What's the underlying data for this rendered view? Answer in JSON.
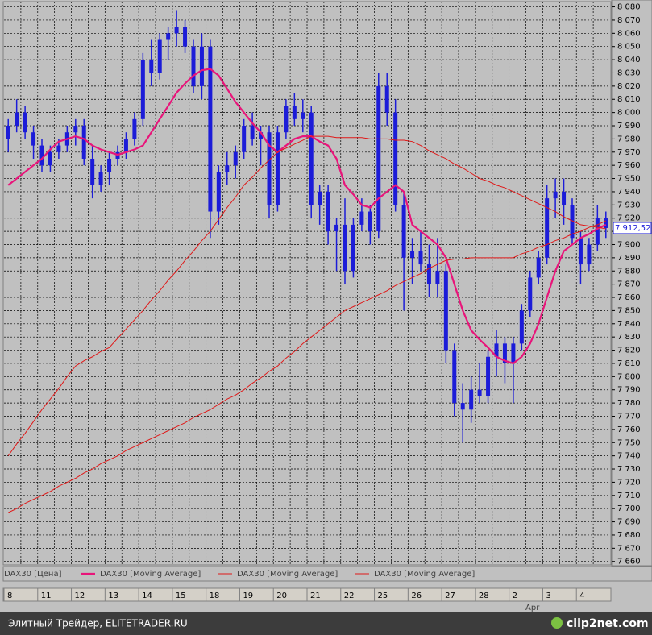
{
  "chart_data": {
    "type": "candlestick",
    "categories": [
      "8",
      null,
      null,
      null,
      "11",
      null,
      null,
      null,
      "12",
      null,
      null,
      null,
      "13",
      null,
      null,
      null,
      "14",
      null,
      null,
      null,
      "15",
      null,
      null,
      null,
      "18",
      null,
      null,
      null,
      "19",
      null,
      null,
      null,
      "20",
      null,
      null,
      null,
      "21",
      null,
      null,
      null,
      "22",
      null,
      null,
      null,
      "25",
      null,
      null,
      null,
      "26",
      null,
      null,
      null,
      "27",
      null,
      null,
      null,
      "28",
      null,
      null,
      null,
      "2",
      null,
      null,
      null,
      "3",
      null,
      null,
      null,
      "4",
      null,
      null,
      null
    ],
    "x_annotation": "Apr",
    "ylim": [
      7658,
      8084
    ],
    "yticks": [
      {
        "value": 7660,
        "label": "7 660"
      },
      {
        "value": 7670,
        "label": "7 670"
      },
      {
        "value": 7680,
        "label": "7 680"
      },
      {
        "value": 7690,
        "label": "7 690"
      },
      {
        "value": 7700,
        "label": "7 700"
      },
      {
        "value": 7710,
        "label": "7 710"
      },
      {
        "value": 7720,
        "label": "7 720"
      },
      {
        "value": 7730,
        "label": "7 730"
      },
      {
        "value": 7740,
        "label": "7 740"
      },
      {
        "value": 7750,
        "label": "7 750"
      },
      {
        "value": 7760,
        "label": "7 760"
      },
      {
        "value": 7770,
        "label": "7 770"
      },
      {
        "value": 7780,
        "label": "7 780"
      },
      {
        "value": 7790,
        "label": "7 790"
      },
      {
        "value": 7800,
        "label": "7 800"
      },
      {
        "value": 7810,
        "label": "7 810"
      },
      {
        "value": 7820,
        "label": "7 820"
      },
      {
        "value": 7830,
        "label": "7 830"
      },
      {
        "value": 7840,
        "label": "7 840"
      },
      {
        "value": 7850,
        "label": "7 850"
      },
      {
        "value": 7860,
        "label": "7 860"
      },
      {
        "value": 7870,
        "label": "7 870"
      },
      {
        "value": 7880,
        "label": "7 880"
      },
      {
        "value": 7890,
        "label": "7 890"
      },
      {
        "value": 7900,
        "label": "7 900"
      },
      {
        "value": 7910,
        "label": "7 910"
      },
      {
        "value": 7920,
        "label": "7 920"
      },
      {
        "value": 7930,
        "label": "7 930"
      },
      {
        "value": 7940,
        "label": "7 940"
      },
      {
        "value": 7950,
        "label": "7 950"
      },
      {
        "value": 7960,
        "label": "7 960"
      },
      {
        "value": 7970,
        "label": "7 970"
      },
      {
        "value": 7980,
        "label": "7 980"
      },
      {
        "value": 7990,
        "label": "7 990"
      },
      {
        "value": 8000,
        "label": "8 000"
      },
      {
        "value": 8010,
        "label": "8 010"
      },
      {
        "value": 8020,
        "label": "8 020"
      },
      {
        "value": 8030,
        "label": "8 030"
      },
      {
        "value": 8040,
        "label": "8 040"
      },
      {
        "value": 8050,
        "label": "8 050"
      },
      {
        "value": 8060,
        "label": "8 060"
      },
      {
        "value": 8070,
        "label": "8 070"
      },
      {
        "value": 8080,
        "label": "8 080"
      }
    ],
    "grid": true,
    "last_price": {
      "value": 7912.52,
      "label": "7 912,52"
    },
    "series": [
      {
        "name": "DAX30 [Цена]",
        "type": "candlestick",
        "color": "#1c1cd8",
        "open": [
          7980,
          7990,
          8000,
          7985,
          7975,
          7960,
          7970,
          7975,
          7985,
          7990,
          7965,
          7945,
          7955,
          7965,
          7970,
          7980,
          7995,
          8040,
          8030,
          8055,
          8060,
          8065,
          8050,
          8020,
          8050,
          7925,
          7955,
          7960,
          7970,
          7990,
          7980,
          7985,
          7930,
          7985,
          8005,
          7995,
          8000,
          7930,
          7940,
          7910,
          7915,
          7880,
          7915,
          7925,
          7910,
          8020,
          8000,
          7930,
          7890,
          7895,
          7885,
          7870,
          7880,
          7820,
          7780,
          7775,
          7790,
          7785,
          7815,
          7825,
          7810,
          7825,
          7850,
          7875,
          7890,
          7935,
          7940,
          7930,
          7905,
          7885,
          7900,
          7920
        ],
        "high": [
          7995,
          8010,
          8005,
          7990,
          7980,
          7975,
          7980,
          7990,
          7995,
          7995,
          7975,
          7960,
          7970,
          7975,
          7985,
          8000,
          8045,
          8055,
          8060,
          8065,
          8077,
          8070,
          8055,
          8060,
          8055,
          7960,
          7970,
          7975,
          7995,
          8000,
          7990,
          7990,
          7990,
          8010,
          8015,
          8010,
          8005,
          7945,
          7945,
          7920,
          7935,
          7920,
          7935,
          7930,
          8030,
          8030,
          8010,
          7940,
          7905,
          7910,
          7900,
          7905,
          7885,
          7825,
          7795,
          7800,
          7810,
          7820,
          7835,
          7830,
          7830,
          7855,
          7880,
          7895,
          7945,
          7950,
          7950,
          7935,
          7910,
          7905,
          7930,
          7925
        ],
        "low": [
          7970,
          7985,
          7980,
          7965,
          7955,
          7955,
          7965,
          7970,
          7975,
          7960,
          7935,
          7940,
          7945,
          7960,
          7965,
          7975,
          7990,
          8020,
          8025,
          8040,
          8050,
          8045,
          8015,
          8010,
          7905,
          7915,
          7945,
          7950,
          7965,
          7975,
          7960,
          7920,
          7925,
          7980,
          7990,
          7985,
          7920,
          7915,
          7900,
          7880,
          7870,
          7875,
          7910,
          7900,
          7905,
          7990,
          7925,
          7850,
          7870,
          7880,
          7860,
          7860,
          7810,
          7770,
          7750,
          7765,
          7780,
          7780,
          7800,
          7795,
          7780,
          7820,
          7845,
          7870,
          7885,
          7920,
          7915,
          7900,
          7870,
          7880,
          7895,
          7905
        ],
        "close": [
          7990,
          8000,
          7985,
          7975,
          7960,
          7970,
          7975,
          7985,
          7990,
          7965,
          7945,
          7955,
          7965,
          7970,
          7980,
          7995,
          8040,
          8030,
          8055,
          8060,
          8065,
          8050,
          8020,
          8050,
          7925,
          7955,
          7960,
          7970,
          7990,
          7980,
          7985,
          7930,
          7985,
          8005,
          7995,
          8000,
          7930,
          7940,
          7910,
          7915,
          7880,
          7915,
          7925,
          7910,
          8020,
          8000,
          7930,
          7890,
          7895,
          7885,
          7870,
          7880,
          7820,
          7780,
          7775,
          7790,
          7785,
          7815,
          7825,
          7810,
          7825,
          7850,
          7875,
          7890,
          7935,
          7940,
          7930,
          7905,
          7885,
          7900,
          7920,
          7912.52
        ]
      },
      {
        "name": "DAX30 [Moving Average]",
        "type": "line",
        "color": "#e8157a",
        "values": [
          7945,
          7950,
          7955,
          7960,
          7965,
          7972,
          7978,
          7980,
          7982,
          7980,
          7975,
          7972,
          7970,
          7968,
          7970,
          7972,
          7975,
          7985,
          7995,
          8005,
          8015,
          8022,
          8028,
          8032,
          8033,
          8028,
          8018,
          8008,
          8000,
          7992,
          7985,
          7975,
          7970,
          7975,
          7980,
          7982,
          7982,
          7978,
          7975,
          7965,
          7945,
          7938,
          7930,
          7928,
          7935,
          7940,
          7945,
          7940,
          7915,
          7910,
          7905,
          7900,
          7890,
          7870,
          7850,
          7835,
          7828,
          7822,
          7815,
          7812,
          7810,
          7815,
          7825,
          7840,
          7860,
          7880,
          7895,
          7900,
          7905,
          7908,
          7912,
          7915
        ]
      },
      {
        "name": "DAX30 [Moving Average]",
        "type": "line",
        "color": "#e01818",
        "values": [
          7740,
          7749,
          7757,
          7766,
          7775,
          7783,
          7791,
          7800,
          7808,
          7812,
          7815,
          7819,
          7822,
          7829,
          7836,
          7843,
          7850,
          7858,
          7865,
          7873,
          7880,
          7888,
          7895,
          7903,
          7910,
          7919,
          7928,
          7936,
          7945,
          7951,
          7958,
          7964,
          7970,
          7973,
          7976,
          7979,
          7982,
          7982,
          7982,
          7981,
          7981,
          7981,
          7981,
          7980,
          7980,
          7980,
          7979,
          7979,
          7978,
          7975,
          7971,
          7968,
          7965,
          7961,
          7958,
          7954,
          7950,
          7948,
          7945,
          7943,
          7940,
          7937,
          7934,
          7931,
          7928,
          7925,
          7921,
          7918,
          7915,
          7914,
          7913,
          7912
        ]
      },
      {
        "name": "DAX30 [Moving Average]",
        "type": "line",
        "color": "#e01818",
        "values": [
          7697,
          7700,
          7704,
          7707,
          7710,
          7713,
          7717,
          7720,
          7723,
          7727,
          7730,
          7734,
          7737,
          7740,
          7744,
          7747,
          7750,
          7753,
          7756,
          7759,
          7762,
          7765,
          7769,
          7772,
          7775,
          7779,
          7783,
          7786,
          7790,
          7795,
          7799,
          7804,
          7808,
          7814,
          7819,
          7825,
          7830,
          7835,
          7840,
          7845,
          7850,
          7853,
          7856,
          7859,
          7862,
          7865,
          7869,
          7872,
          7875,
          7878,
          7882,
          7885,
          7888,
          7889,
          7889,
          7890,
          7890,
          7890,
          7890,
          7890,
          7890,
          7893,
          7895,
          7898,
          7900,
          7903,
          7905,
          7908,
          7910,
          7913,
          7915,
          7918
        ]
      }
    ]
  },
  "footer": {
    "left": "Элитный Трейдер, ELITETRADER.RU",
    "right": "clip2net.com"
  }
}
